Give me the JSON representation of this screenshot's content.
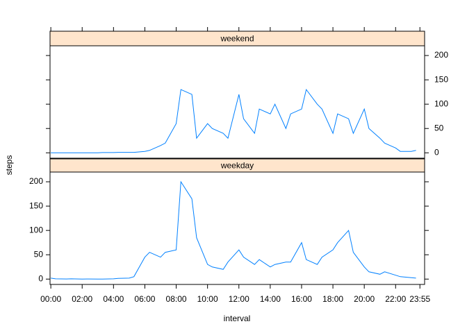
{
  "chart_data": {
    "type": "line",
    "xlabel": "interval",
    "ylabel": "steps",
    "x": [
      0,
      30,
      100,
      130,
      200,
      230,
      300,
      330,
      400,
      430,
      500,
      530,
      600,
      630,
      700,
      730,
      800,
      830,
      900,
      930,
      1000,
      1030,
      1100,
      1130,
      1200,
      1230,
      1300,
      1330,
      1400,
      1430,
      1500,
      1530,
      1600,
      1630,
      1700,
      1730,
      1800,
      1830,
      1900,
      1930,
      2000,
      2030,
      2100,
      2130,
      2200,
      2230,
      2300,
      2330
    ],
    "series": [
      {
        "name": "weekend",
        "color": "#0080ff",
        "values": [
          0,
          0,
          0,
          0,
          0,
          0,
          0,
          0.5,
          0.5,
          1,
          1,
          1,
          3,
          5,
          15,
          20,
          60,
          130,
          120,
          30,
          60,
          50,
          40,
          30,
          120,
          70,
          40,
          90,
          80,
          100,
          50,
          80,
          90,
          130,
          100,
          90,
          40,
          80,
          70,
          40,
          90,
          50,
          30,
          20,
          10,
          3,
          3,
          5
        ]
      },
      {
        "name": "weekday",
        "color": "#0080ff",
        "values": [
          2,
          0.5,
          0.3,
          0.5,
          0,
          0.2,
          0,
          0.1,
          0.5,
          1.5,
          2,
          5,
          45,
          55,
          45,
          55,
          60,
          200,
          165,
          85,
          30,
          25,
          20,
          35,
          60,
          45,
          30,
          40,
          25,
          30,
          35,
          35,
          75,
          40,
          30,
          45,
          60,
          75,
          100,
          55,
          25,
          15,
          10,
          15,
          8,
          5,
          3,
          2
        ]
      }
    ],
    "xlim": [
      -5,
      2385
    ],
    "ylim": [
      -11,
      220
    ],
    "xticks": [
      {
        "value": 0,
        "label": "00:00"
      },
      {
        "value": 200,
        "label": "02:00"
      },
      {
        "value": 400,
        "label": "04:00"
      },
      {
        "value": 600,
        "label": "06:00"
      },
      {
        "value": 800,
        "label": "08:00"
      },
      {
        "value": 1000,
        "label": "10:00"
      },
      {
        "value": 1200,
        "label": "12:00"
      },
      {
        "value": 1400,
        "label": "14:00"
      },
      {
        "value": 1600,
        "label": "16:00"
      },
      {
        "value": 1800,
        "label": "18:00"
      },
      {
        "value": 2000,
        "label": "20:00"
      },
      {
        "value": 2200,
        "label": "22:00"
      },
      {
        "value": 2355,
        "label": "23:55"
      }
    ],
    "yticks": [
      0,
      50,
      100,
      150,
      200
    ],
    "strip_color": "#ffe5cc"
  }
}
